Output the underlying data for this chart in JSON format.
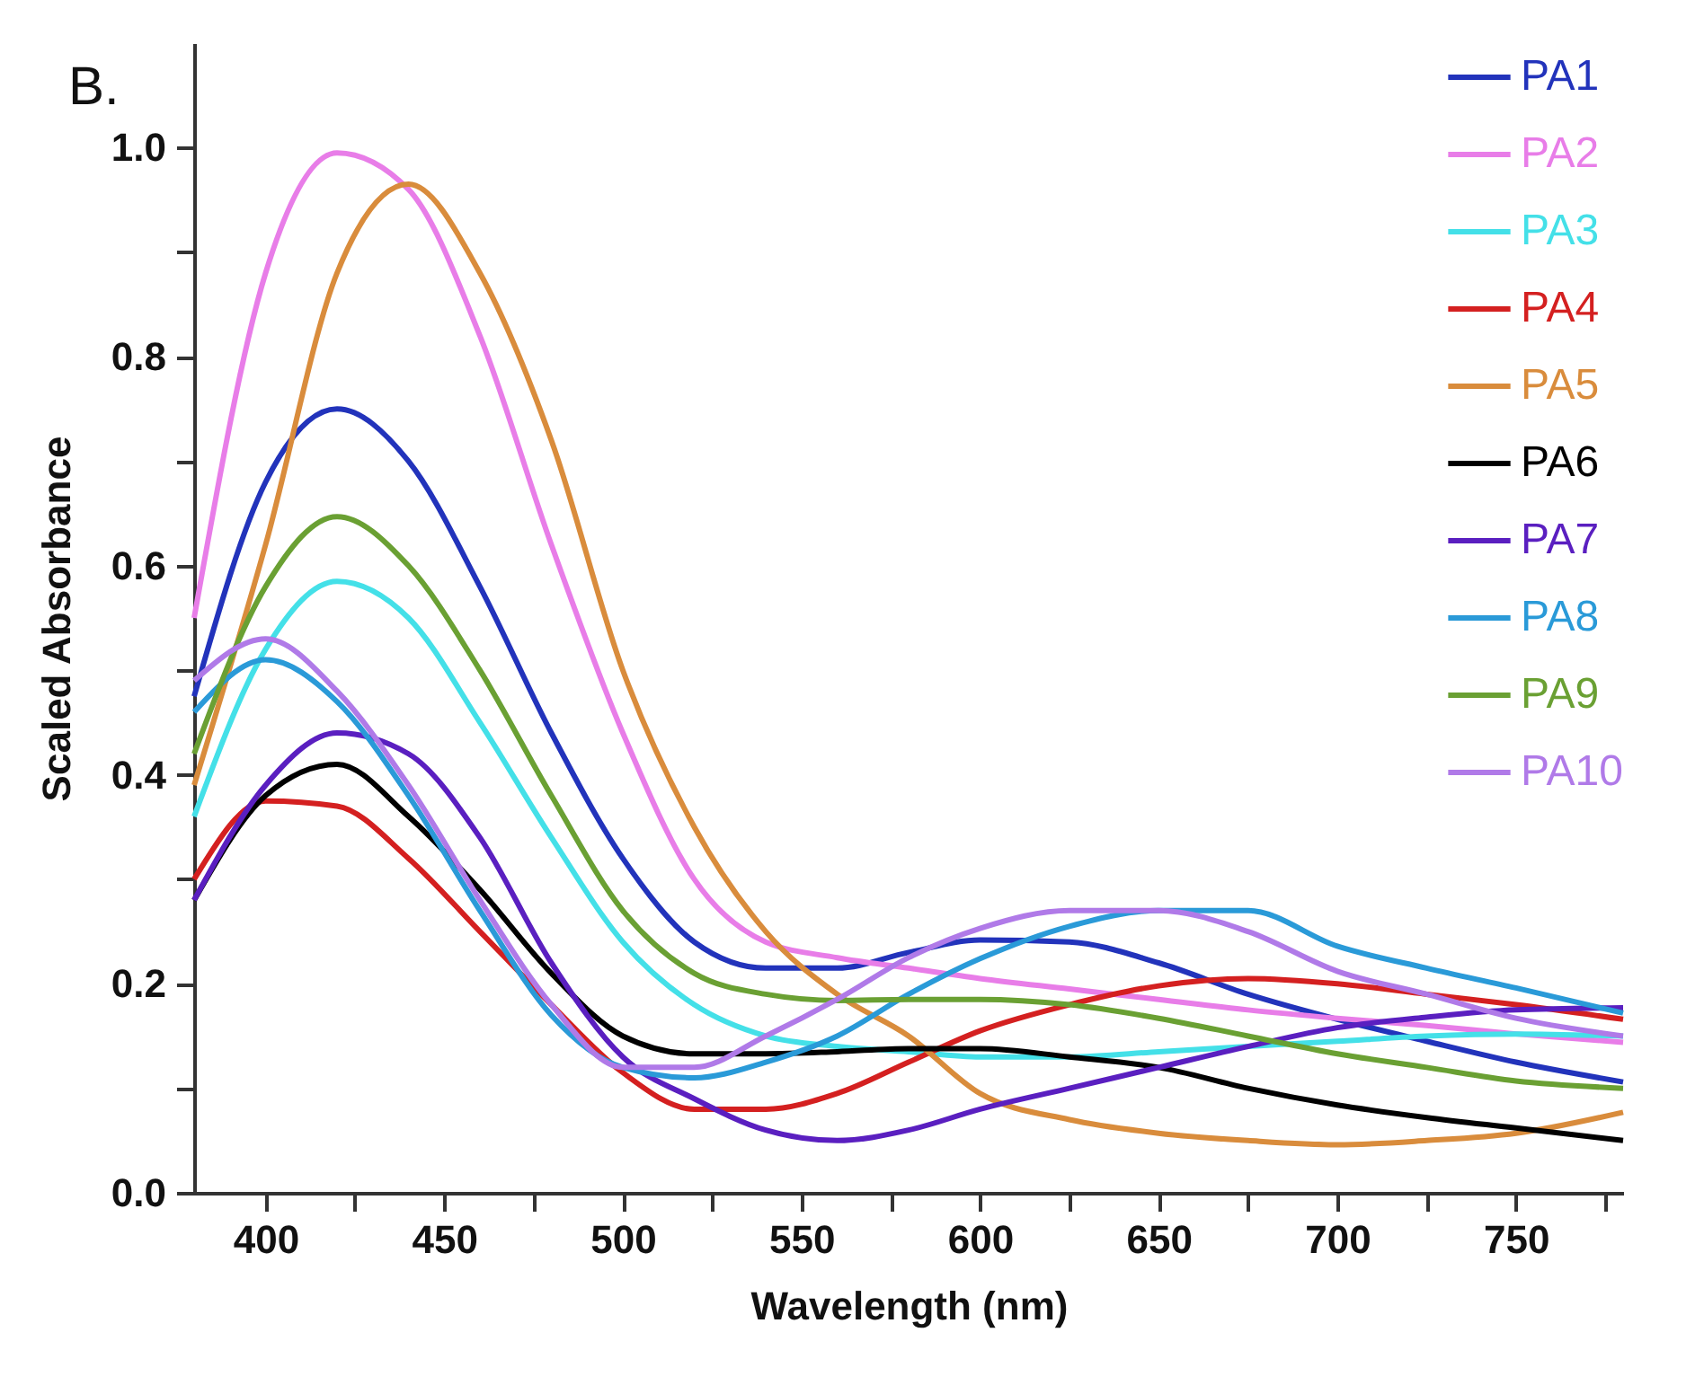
{
  "chart_data": {
    "type": "line",
    "xlabel": "Wavelength (nm)",
    "ylabel": "Scaled Absorbance",
    "annotations": [
      "B."
    ],
    "x": [
      380,
      400,
      420,
      440,
      460,
      480,
      500,
      520,
      540,
      560,
      580,
      600,
      625,
      650,
      675,
      700,
      725,
      750,
      780
    ],
    "xlim": [
      380,
      780
    ],
    "xticks": [
      400,
      {
        "value": 425,
        "label": null
      },
      450,
      {
        "value": 475,
        "label": null
      },
      500,
      {
        "value": 525,
        "label": null
      },
      550,
      {
        "value": 575,
        "label": null
      },
      600,
      {
        "value": 625,
        "label": null
      },
      650,
      {
        "value": 675,
        "label": null
      },
      700,
      {
        "value": 725,
        "label": null
      },
      750,
      {
        "value": 775,
        "label": null
      }
    ],
    "ylim": [
      0,
      1.1
    ],
    "yticks": [
      {
        "value": 0,
        "label": "0.0"
      },
      {
        "value": 0.1,
        "label": null
      },
      0.2,
      {
        "value": 0.3,
        "label": null
      },
      0.4,
      {
        "value": 0.5,
        "label": null
      },
      0.6,
      {
        "value": 0.7,
        "label": null
      },
      0.8,
      {
        "value": 0.9,
        "label": null
      },
      {
        "value": 1,
        "label": "1.0"
      }
    ],
    "grid": false,
    "legend": "top right",
    "marker": "none",
    "line_style": "solid",
    "series": [
      {
        "name": "PA1",
        "color": "#2233bb",
        "values": [
          0.475,
          0.68,
          0.75,
          0.7,
          0.58,
          0.44,
          0.32,
          0.24,
          0.215,
          0.215,
          0.23,
          0.242,
          0.24,
          0.22,
          0.19,
          0.166,
          0.145,
          0.125,
          0.106
        ]
      },
      {
        "name": "PA2",
        "color": "#e87de8",
        "values": [
          0.55,
          0.88,
          0.995,
          0.96,
          0.82,
          0.62,
          0.44,
          0.3,
          0.24,
          0.225,
          0.215,
          0.205,
          0.195,
          0.185,
          0.175,
          0.167,
          0.16,
          0.152,
          0.144
        ]
      },
      {
        "name": "PA3",
        "color": "#44e0e8",
        "values": [
          0.36,
          0.52,
          0.585,
          0.55,
          0.45,
          0.34,
          0.24,
          0.18,
          0.15,
          0.14,
          0.135,
          0.13,
          0.13,
          0.135,
          0.14,
          0.145,
          0.15,
          0.152,
          0.15
        ]
      },
      {
        "name": "PA4",
        "color": "#d42020",
        "values": [
          0.3,
          0.375,
          0.37,
          0.32,
          0.25,
          0.18,
          0.115,
          0.08,
          0.08,
          0.095,
          0.125,
          0.155,
          0.18,
          0.198,
          0.205,
          0.2,
          0.19,
          0.18,
          0.166
        ]
      },
      {
        "name": "PA5",
        "color": "#d98c3c",
        "values": [
          0.39,
          0.62,
          0.88,
          0.965,
          0.88,
          0.72,
          0.5,
          0.35,
          0.25,
          0.19,
          0.15,
          0.095,
          0.07,
          0.057,
          0.05,
          0.046,
          0.05,
          0.057,
          0.077
        ]
      },
      {
        "name": "PA6",
        "color": "#000000",
        "values": [
          0.28,
          0.38,
          0.41,
          0.36,
          0.29,
          0.21,
          0.15,
          0.133,
          0.133,
          0.135,
          0.138,
          0.138,
          0.13,
          0.12,
          0.1,
          0.084,
          0.072,
          0.062,
          0.05
        ]
      },
      {
        "name": "PA7",
        "color": "#5a1fc0",
        "values": [
          0.28,
          0.39,
          0.44,
          0.42,
          0.34,
          0.22,
          0.13,
          0.09,
          0.06,
          0.05,
          0.06,
          0.08,
          0.1,
          0.12,
          0.14,
          0.158,
          0.168,
          0.175,
          0.177
        ]
      },
      {
        "name": "PA8",
        "color": "#2a9ad8",
        "values": [
          0.46,
          0.51,
          0.47,
          0.38,
          0.27,
          0.17,
          0.12,
          0.11,
          0.125,
          0.15,
          0.19,
          0.224,
          0.255,
          0.27,
          0.27,
          0.236,
          0.215,
          0.196,
          0.172
        ]
      },
      {
        "name": "PA9",
        "color": "#6aa033",
        "values": [
          0.42,
          0.58,
          0.647,
          0.6,
          0.5,
          0.38,
          0.27,
          0.21,
          0.19,
          0.184,
          0.185,
          0.185,
          0.18,
          0.167,
          0.15,
          0.133,
          0.12,
          0.107,
          0.1
        ]
      },
      {
        "name": "PA10",
        "color": "#b07ae8",
        "values": [
          0.49,
          0.53,
          0.48,
          0.39,
          0.28,
          0.18,
          0.12,
          0.12,
          0.15,
          0.185,
          0.225,
          0.253,
          0.27,
          0.27,
          0.25,
          0.212,
          0.19,
          0.167,
          0.15
        ]
      }
    ]
  }
}
